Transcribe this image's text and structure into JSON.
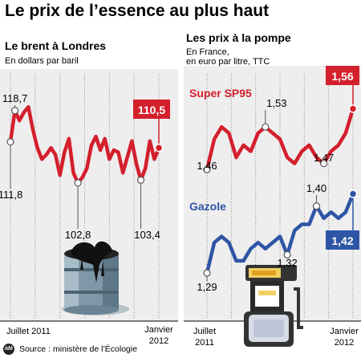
{
  "title": "Le prix de l’essence au plus haut",
  "source": {
    "logo_text": "idé",
    "text": "Source : ministère de l’Écologie"
  },
  "colors": {
    "brent": "#d41f2c",
    "sp95": "#d41f2c",
    "gazole": "#2e55a5",
    "panel": "#eeeeee",
    "text": "#000000"
  },
  "icons": {
    "left_panel": "oil-barrel-icon",
    "right_panel": "fuel-pump-icon"
  },
  "chart_data": [
    {
      "type": "line",
      "title": "Le brent à Londres",
      "subtitle": "En dollars par baril",
      "x_axis_start": "Juillet 2011",
      "x_axis_end": "Janvier 2012",
      "ylim": [
        95,
        125
      ],
      "grid": "vertical dotted",
      "series": [
        {
          "values": [
            111.8,
            118.7,
            116.5,
            118.3,
            119.5,
            114.5,
            110.5,
            108.0,
            109.0,
            110.5,
            109.0,
            104.5,
            109.5,
            112.5,
            105.0,
            102.8,
            104.0,
            106.0,
            111.0,
            113.0,
            110.0,
            112.5,
            108.0,
            110.0,
            109.5,
            105.0,
            108.5,
            112.0,
            107.0,
            103.4,
            106.0,
            112.0,
            108.0,
            110.5
          ],
          "labels": [
            {
              "index": 0,
              "text": "111,8"
            },
            {
              "index": 1,
              "text": "118,7"
            },
            {
              "index": 15,
              "text": "102,8"
            },
            {
              "index": 29,
              "text": "103,4"
            },
            {
              "index": 33,
              "text": "110,5",
              "highlight": true
            }
          ]
        }
      ]
    },
    {
      "type": "line",
      "title": "Les prix à la pompe",
      "subtitle": [
        "En France,",
        "en euro par litre, TTC"
      ],
      "x_axis_start": [
        "Juillet",
        "2011"
      ],
      "x_axis_end": [
        "Janvier",
        "2012"
      ],
      "ylim": [
        1.24,
        1.62
      ],
      "grid": "vertical dotted",
      "series": [
        {
          "name": "Super SP95",
          "values": [
            1.46,
            1.51,
            1.53,
            1.52,
            1.48,
            1.5,
            1.49,
            1.52,
            1.53,
            1.52,
            1.51,
            1.48,
            1.47,
            1.49,
            1.5,
            1.48,
            1.47,
            1.49,
            1.5,
            1.52,
            1.56
          ],
          "labels": [
            {
              "index": 0,
              "text": "1,46"
            },
            {
              "index": 8,
              "text": "1,53"
            },
            {
              "index": 16,
              "text": "1,47"
            },
            {
              "index": 20,
              "text": "1,56",
              "highlight": true
            }
          ]
        },
        {
          "name": "Gazole",
          "values": [
            1.29,
            1.34,
            1.35,
            1.34,
            1.31,
            1.31,
            1.33,
            1.34,
            1.33,
            1.34,
            1.35,
            1.32,
            1.36,
            1.37,
            1.37,
            1.4,
            1.38,
            1.39,
            1.38,
            1.39,
            1.42
          ],
          "labels": [
            {
              "index": 0,
              "text": "1,29"
            },
            {
              "index": 11,
              "text": "1,32"
            },
            {
              "index": 15,
              "text": "1,40"
            },
            {
              "index": 20,
              "text": "1,42",
              "highlight": true
            }
          ]
        }
      ]
    }
  ]
}
